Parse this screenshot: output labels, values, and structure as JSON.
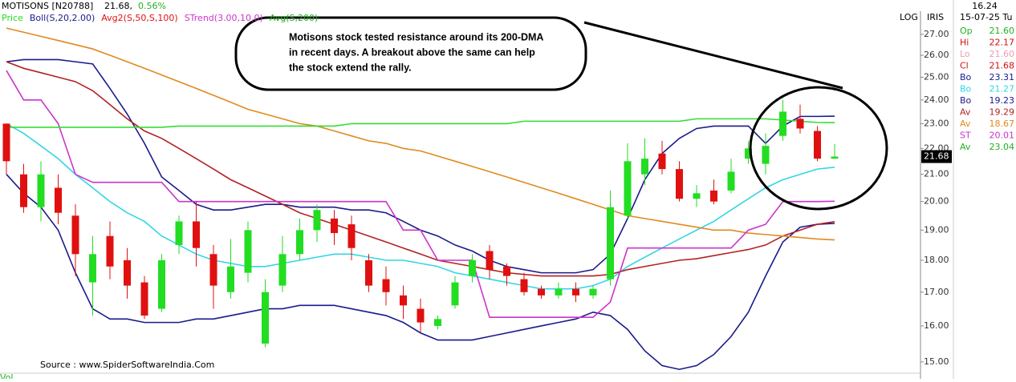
{
  "header": {
    "symbol": "MOTISONS [N20788]",
    "price": "21.68,",
    "change": "0.56%",
    "scale_mode": "LOG",
    "indicator_name": "IRIS"
  },
  "annotation": {
    "lines": [
      "Motisons stock tested resistance around its 200-DMA",
      "in recent days. A breakout above the same can help",
      "the stock extend the rally."
    ]
  },
  "source": "Source : www.SpiderSoftwareIndia.Com",
  "volume_label": "Vol",
  "info_panel": {
    "time": "16.24",
    "date": "15-07-25 Tu",
    "rows": [
      {
        "label": "Op",
        "value": "21.60",
        "color": "#22b022"
      },
      {
        "label": "Hi",
        "value": "22.17",
        "color": "#d01010"
      },
      {
        "label": "Lo",
        "value": "21.60",
        "color": "#e8a0b0"
      },
      {
        "label": "Cl",
        "value": "21.68",
        "color": "#d01010"
      },
      {
        "label": "Bo",
        "value": "23.31",
        "color": "#1a1a8c"
      },
      {
        "label": "Bo",
        "value": "21.27",
        "color": "#33d6e6"
      },
      {
        "label": "Bo",
        "value": "19.23",
        "color": "#1a1a8c"
      },
      {
        "label": "Av",
        "value": "19.29",
        "color": "#b22222"
      },
      {
        "label": "Av",
        "value": "18.67",
        "color": "#e08a1e"
      },
      {
        "label": "ST",
        "value": "20.01",
        "color": "#cc33cc"
      },
      {
        "label": "Av",
        "value": "23.04",
        "color": "#22b022"
      }
    ]
  },
  "chart_data": {
    "type": "candlestick",
    "log_scale": true,
    "ylim": [
      14.72,
      28.1
    ],
    "yticks": [
      {
        "value": 15,
        "label": "15.00"
      },
      {
        "value": 16,
        "label": "16.00"
      },
      {
        "value": 17,
        "label": "17.00"
      },
      {
        "value": 18,
        "label": "18.00"
      },
      {
        "value": 19,
        "label": "19.00"
      },
      {
        "value": 20,
        "label": "20.00"
      },
      {
        "value": 21,
        "label": "21.00"
      },
      {
        "value": 22,
        "label": "22.00"
      },
      {
        "value": 23,
        "label": "23.00"
      },
      {
        "value": 24,
        "label": "24.00"
      },
      {
        "value": 25,
        "label": "25.00"
      },
      {
        "value": 26,
        "label": "26.00"
      },
      {
        "value": 27,
        "label": "27.00"
      }
    ],
    "price_name": "Price",
    "up_color": "#22dd22",
    "down_color": "#e01010",
    "candles": {
      "open": [
        23.0,
        21.0,
        19.8,
        20.5,
        19.5,
        17.3,
        18.8,
        18.0,
        17.3,
        16.5,
        18.5,
        19.3,
        18.2,
        17.0,
        17.6,
        15.5,
        17.2,
        18.2,
        19.0,
        19.4,
        19.2,
        18.0,
        17.4,
        16.9,
        16.5,
        16.0,
        16.6,
        17.5,
        18.3,
        17.8,
        17.4,
        17.1,
        16.9,
        17.1,
        16.9,
        17.4,
        19.5,
        21.0,
        21.8,
        21.2,
        20.1,
        20.4,
        20.4,
        21.6,
        21.4,
        22.5,
        23.2,
        22.7,
        21.6
      ],
      "high": [
        23.0,
        21.4,
        21.5,
        21.0,
        19.9,
        18.8,
        19.3,
        18.4,
        17.5,
        18.2,
        19.5,
        20.0,
        18.5,
        18.7,
        19.3,
        17.4,
        18.8,
        19.4,
        19.9,
        19.7,
        19.5,
        18.2,
        17.8,
        17.2,
        16.8,
        16.3,
        17.5,
        18.2,
        18.5,
        17.9,
        17.6,
        17.2,
        17.3,
        17.3,
        17.2,
        20.4,
        22.2,
        22.4,
        22.3,
        21.5,
        20.6,
        20.8,
        21.6,
        22.3,
        22.6,
        24.0,
        23.8,
        22.9,
        22.17
      ],
      "low": [
        21.0,
        19.6,
        19.3,
        19.2,
        17.5,
        16.3,
        17.4,
        16.8,
        16.2,
        16.4,
        18.2,
        17.8,
        16.5,
        16.8,
        17.3,
        15.4,
        17.0,
        18.0,
        18.6,
        18.5,
        18.0,
        17.0,
        16.6,
        16.2,
        15.8,
        15.9,
        16.5,
        17.3,
        17.4,
        17.2,
        16.9,
        16.8,
        16.8,
        16.7,
        16.8,
        17.2,
        19.4,
        20.6,
        21.0,
        20.0,
        19.8,
        19.9,
        20.3,
        21.4,
        21.0,
        22.3,
        22.6,
        21.5,
        21.6
      ],
      "close": [
        21.5,
        19.8,
        21.0,
        19.6,
        18.2,
        18.2,
        17.8,
        17.2,
        16.3,
        18.0,
        19.3,
        18.4,
        17.2,
        17.8,
        19.0,
        17.0,
        18.2,
        19.0,
        19.7,
        18.9,
        18.4,
        17.2,
        17.0,
        16.6,
        16.1,
        16.2,
        17.3,
        18.0,
        17.7,
        17.5,
        17.0,
        16.9,
        17.1,
        16.9,
        17.1,
        19.8,
        21.5,
        21.6,
        21.2,
        20.1,
        20.3,
        20.0,
        21.1,
        22.0,
        22.1,
        23.5,
        22.8,
        21.6,
        21.68
      ]
    },
    "indicators": [
      {
        "name": "Boll(S,20,2.00)",
        "color": "#1a1a8c",
        "lines": [
          {
            "color": "#1a1a8c",
            "values": [
              25.7,
              25.8,
              25.8,
              25.8,
              25.7,
              25.6,
              24.5,
              23.4,
              22.2,
              20.9,
              20.4,
              19.9,
              19.7,
              19.7,
              19.8,
              19.9,
              19.9,
              19.8,
              19.8,
              19.8,
              19.7,
              19.7,
              19.6,
              19.3,
              19.0,
              18.8,
              18.5,
              18.3,
              18.0,
              17.8,
              17.7,
              17.6,
              17.6,
              17.6,
              17.7,
              18.2,
              19.4,
              20.8,
              21.8,
              22.4,
              22.8,
              22.9,
              22.9,
              22.9,
              22.2,
              22.9,
              23.3,
              23.3,
              23.31
            ]
          },
          {
            "color": "#33d6e6",
            "values": [
              23.0,
              22.6,
              22.1,
              21.6,
              21.0,
              20.5,
              20.0,
              19.6,
              19.3,
              18.8,
              18.5,
              18.2,
              18.0,
              17.9,
              17.8,
              17.8,
              17.9,
              18.0,
              18.1,
              18.2,
              18.2,
              18.1,
              18.0,
              18.0,
              17.9,
              17.8,
              17.6,
              17.5,
              17.4,
              17.3,
              17.2,
              17.1,
              17.1,
              17.1,
              17.2,
              17.4,
              17.8,
              18.1,
              18.4,
              18.7,
              19.0,
              19.3,
              19.7,
              20.1,
              20.5,
              20.8,
              21.0,
              21.2,
              21.27
            ]
          },
          {
            "color": "#1a1a8c",
            "values": [
              21.0,
              20.3,
              19.8,
              19.0,
              17.6,
              16.5,
              16.2,
              16.2,
              16.1,
              16.1,
              16.1,
              16.2,
              16.2,
              16.3,
              16.4,
              16.5,
              16.5,
              16.6,
              16.6,
              16.6,
              16.5,
              16.4,
              16.3,
              16.1,
              15.8,
              15.6,
              15.6,
              15.6,
              15.7,
              15.8,
              15.9,
              16.0,
              16.1,
              16.2,
              16.4,
              16.3,
              15.9,
              15.3,
              14.9,
              14.8,
              14.9,
              15.2,
              15.7,
              16.4,
              17.5,
              18.6,
              19.1,
              19.2,
              19.23
            ]
          }
        ]
      },
      {
        "name": "Avg2(S,50,S,100)",
        "color": "#e01010",
        "lines": [
          {
            "color": "#b22222",
            "values": [
              25.7,
              25.4,
              25.2,
              25.0,
              24.8,
              24.4,
              23.8,
              23.2,
              22.7,
              22.4,
              22.0,
              21.6,
              21.2,
              20.8,
              20.5,
              20.2,
              19.9,
              19.6,
              19.4,
              19.2,
              19.0,
              18.8,
              18.6,
              18.4,
              18.2,
              18.0,
              17.9,
              17.8,
              17.7,
              17.6,
              17.55,
              17.5,
              17.5,
              17.5,
              17.5,
              17.55,
              17.7,
              17.8,
              17.9,
              18.0,
              18.05,
              18.15,
              18.25,
              18.35,
              18.5,
              18.8,
              19.0,
              19.2,
              19.29
            ]
          },
          {
            "color": "#e08a1e",
            "values": [
              27.3,
              27.1,
              26.9,
              26.7,
              26.5,
              26.3,
              26.0,
              25.7,
              25.4,
              25.1,
              24.8,
              24.5,
              24.2,
              23.9,
              23.6,
              23.4,
              23.2,
              23.0,
              22.9,
              22.7,
              22.5,
              22.3,
              22.2,
              22.0,
              21.9,
              21.7,
              21.5,
              21.3,
              21.1,
              20.9,
              20.7,
              20.5,
              20.3,
              20.1,
              19.9,
              19.7,
              19.5,
              19.4,
              19.3,
              19.2,
              19.1,
              19.0,
              19.0,
              18.9,
              18.85,
              18.8,
              18.75,
              18.7,
              18.67
            ]
          }
        ]
      },
      {
        "name": "STrend(3.00,10,0)",
        "color": "#cc33cc",
        "lines": [
          {
            "color": "#cc33cc",
            "values": [
              25.3,
              24.0,
              24.0,
              23.0,
              21.0,
              20.7,
              20.7,
              20.7,
              20.7,
              20.7,
              20.0,
              20.0,
              20.0,
              20.0,
              20.0,
              20.0,
              20.0,
              20.0,
              20.0,
              20.0,
              20.0,
              20.0,
              20.0,
              19.0,
              19.0,
              18.0,
              18.0,
              18.0,
              16.25,
              16.25,
              16.25,
              16.25,
              16.25,
              16.25,
              16.25,
              16.7,
              18.4,
              18.4,
              18.4,
              18.4,
              18.4,
              18.4,
              18.4,
              19.0,
              19.2,
              20.0,
              20.0,
              20.0,
              20.01
            ]
          }
        ]
      },
      {
        "name": "Avg(S,200)",
        "color": "#22b022",
        "lines": [
          {
            "color": "#33dd33",
            "values": [
              22.85,
              22.85,
              22.85,
              22.85,
              22.85,
              22.85,
              22.85,
              22.85,
              22.85,
              22.85,
              22.9,
              22.9,
              22.9,
              22.9,
              22.9,
              22.9,
              22.9,
              22.9,
              22.9,
              22.9,
              23.0,
              23.0,
              23.0,
              23.0,
              23.0,
              23.0,
              23.0,
              23.0,
              23.0,
              23.0,
              23.1,
              23.1,
              23.1,
              23.1,
              23.1,
              23.1,
              23.1,
              23.1,
              23.1,
              23.1,
              23.2,
              23.2,
              23.2,
              23.2,
              23.2,
              23.15,
              23.1,
              23.05,
              23.04
            ]
          }
        ]
      }
    ]
  }
}
